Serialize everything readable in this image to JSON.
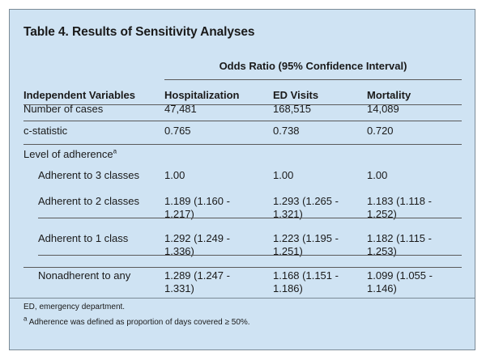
{
  "table": {
    "title": "Table 4. Results of Sensitivity Analyses",
    "super_header": "Odds Ratio (95% Confidence Interval)",
    "columns": [
      "Independent Variables",
      "Hospitalization",
      "ED Visits",
      "Mortality"
    ],
    "rows": [
      {
        "label": "Number of cases",
        "values": [
          "47,481",
          "168,515",
          "14,089"
        ]
      },
      {
        "label": "c-statistic",
        "values": [
          "0.765",
          "0.738",
          "0.720"
        ]
      },
      {
        "label": "Level of adherence",
        "label_sup": "a",
        "values": [
          "",
          "",
          ""
        ]
      },
      {
        "label": "Adherent to 3 classes",
        "values": [
          "1.00",
          "1.00",
          "1.00"
        ]
      },
      {
        "label": "Adherent to 2 classes",
        "values": [
          "1.189 (1.160 -\n1.217)",
          "1.293 (1.265 -\n1.321)",
          "1.183 (1.118 -\n1.252)"
        ]
      },
      {
        "label": "Adherent to 1 class",
        "values": [
          "1.292 (1.249 -\n1.336)",
          "1.223 (1.195 -\n1.251)",
          "1.182 (1.115 -\n1.253)"
        ]
      },
      {
        "label": "Nonadherent to any",
        "values": [
          "1.289 (1.247 -\n1.331)",
          "1.168 (1.151 -\n1.186)",
          "1.099 (1.055 -\n1.146)"
        ]
      }
    ]
  },
  "footnotes": {
    "abbrev": "ED, emergency department.",
    "a_marker": "a",
    "a_text": "Adherence was defined as proportion of days covered ≥ 50%."
  }
}
